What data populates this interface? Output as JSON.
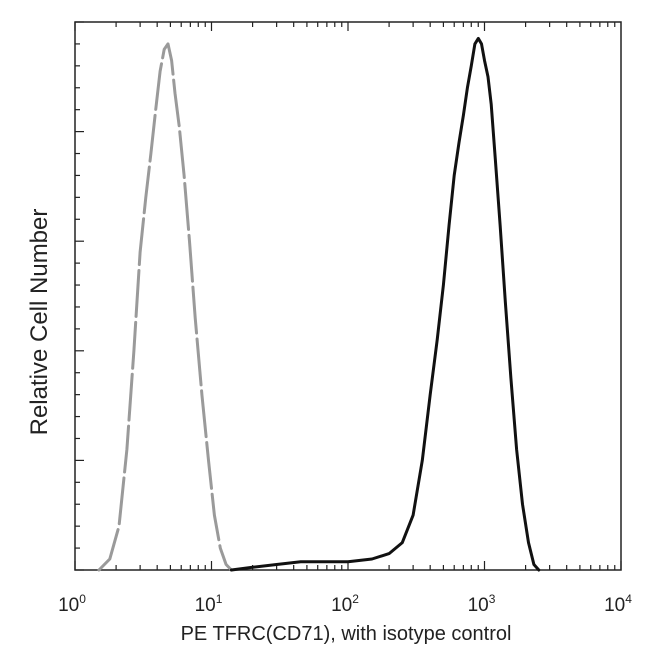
{
  "chart_data": {
    "type": "line",
    "title": "",
    "xlabel": "PE  TFRC(CD71),  with isotype control",
    "ylabel": "Relative Cell Number",
    "x_scale": "log",
    "xlim": [
      1,
      10000
    ],
    "ylim": [
      0,
      100
    ],
    "x_ticks": [
      {
        "base": "10",
        "exp": "0"
      },
      {
        "base": "10",
        "exp": "1"
      },
      {
        "base": "10",
        "exp": "2"
      },
      {
        "base": "10",
        "exp": "3"
      },
      {
        "base": "10",
        "exp": "4"
      }
    ],
    "grid": false,
    "legend": "none",
    "series": [
      {
        "color": "#9a9a9a",
        "line_style": "dashed",
        "x": [
          1.5,
          1.8,
          2.1,
          2.4,
          2.7,
          3.0,
          3.3,
          3.6,
          3.9,
          4.2,
          4.5,
          4.8,
          5.1,
          5.4,
          5.8,
          6.3,
          6.9,
          7.6,
          8.5,
          9.5,
          10.5,
          11.6,
          12.8,
          14
        ],
        "y": [
          0,
          2,
          8,
          22,
          40,
          58,
          68,
          76,
          84,
          91,
          95,
          96,
          93,
          87,
          81,
          72,
          60,
          46,
          32,
          20,
          10,
          4,
          1,
          0
        ]
      },
      {
        "color": "#111111",
        "line_style": "solid",
        "x": [
          14,
          20,
          30,
          45,
          70,
          100,
          150,
          200,
          250,
          300,
          350,
          400,
          450,
          500,
          550,
          600,
          650,
          700,
          750,
          800,
          850,
          900,
          950,
          1000,
          1060,
          1120,
          1200,
          1300,
          1420,
          1560,
          1720,
          1900,
          2100,
          2300,
          2500
        ],
        "y": [
          0,
          0.5,
          1,
          1.5,
          1.5,
          1.5,
          2,
          3,
          5,
          10,
          20,
          32,
          42,
          52,
          63,
          72,
          78,
          83,
          88,
          92,
          96,
          97,
          96,
          93,
          90,
          85,
          75,
          63,
          49,
          35,
          22,
          12,
          5,
          1,
          0
        ]
      }
    ]
  }
}
